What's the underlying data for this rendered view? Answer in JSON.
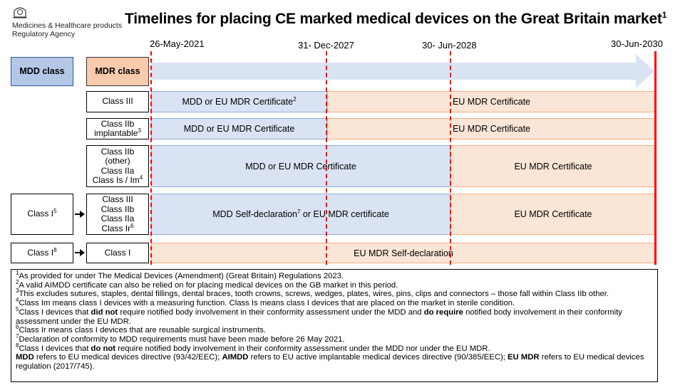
{
  "logo": {
    "line1": "Medicines & Healthcare products",
    "line2": "Regulatory Agency"
  },
  "title": {
    "text": "Timelines for placing CE marked medical devices on the Great Britain market",
    "sup": "1"
  },
  "dates": [
    "26-May-2021",
    "31- Dec-2027",
    "30- Jun-2028",
    "30-Jun-2030"
  ],
  "headers": {
    "mdd_class": "MDD class",
    "mdr_class": "MDR class"
  },
  "rows": [
    {
      "mdr": [
        "Class III"
      ],
      "bars": [
        {
          "text": "MDD or EU MDR Certificate",
          "sup": "2"
        },
        {
          "text": "EU MDR Certificate"
        }
      ]
    },
    {
      "mdr": [
        "Class IIb",
        "implantable"
      ],
      "mdr_sup": "3",
      "bars": [
        {
          "text": "MDD or EU MDR Certificate"
        },
        {
          "text": "EU MDR Certificate"
        }
      ]
    },
    {
      "mdr": [
        "Class IIb",
        "(other)",
        "Class IIa",
        "Class Is / Im"
      ],
      "mdr_sup": "4",
      "bars": [
        {
          "text": "MDD or EU MDR Certificate"
        },
        {
          "text": "EU MDR Certificate"
        }
      ]
    },
    {
      "mdd": "Class I",
      "mdd_sup": "5",
      "mdr": [
        "Class III",
        "Class IIb",
        "Class IIa",
        "Class Ir"
      ],
      "mdr_sup": "6",
      "bars": [
        {
          "text": "MDD Self-declaration",
          "sup": "7",
          "tail": " or EU MDR certificate"
        },
        {
          "text": "EU MDR Certificate"
        }
      ]
    },
    {
      "mdd": "Class I",
      "mdd_sup": "8",
      "mdr": [
        "Class I"
      ],
      "bars": [
        {
          "text": "EU MDR Self-declaration"
        }
      ]
    }
  ],
  "notes": [
    {
      "sup": "1",
      "text": "As provided for under The Medical Devices (Amendment) (Great Britain) Regulations 2023."
    },
    {
      "sup": "2",
      "text": "A valid AIMDD certificate can also be relied on for placing medical devices on the GB market in this period."
    },
    {
      "sup": "3",
      "text": "This excludes sutures, staples, dental fillings, dental braces, tooth crowns, screws, wedges, plates, wires, pins, clips and connectors – those fall within Class IIb other."
    },
    {
      "sup": "4",
      "text": "Class Im means class I devices with a measuring function. Class Is means class I devices that are placed on the market in sterile condition."
    },
    {
      "sup": "5",
      "t1": "Class I devices that ",
      "b1": "did not",
      "t2": " require notified body involvement in their conformity assessment under the MDD and ",
      "b2": "do require",
      "t3": " notified body involvement in their conformity assessment under the EU MDR."
    },
    {
      "sup": "6",
      "text": "Class Ir means class I devices that are reusable surgical instruments."
    },
    {
      "sup": "7",
      "text": "Declaration of conformity to MDD requirements must have been made before 26 May 2021."
    },
    {
      "sup": "8",
      "t1": "Class I devices that ",
      "b1": "do not",
      "t2": " require notified body involvement in their conformity assessment under the MDD nor under the EU MDR."
    },
    {
      "b1": "MDD",
      "t1": " refers to EU medical devices directive (93/42/EEC); ",
      "b2": "AIMDD",
      "t2": " refers to EU active implantable medical devices directive (90/385/EEC); ",
      "b3": "EU MDR",
      "t3": " refers to EU medical devices regulation (2017/745)."
    }
  ]
}
